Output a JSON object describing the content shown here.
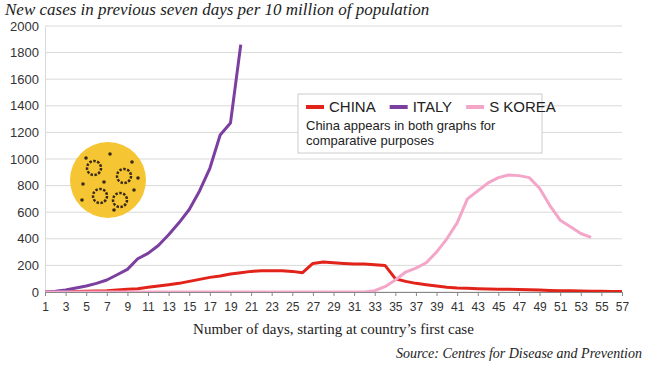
{
  "chart_data": {
    "type": "line",
    "title": "New cases in previous seven days per 10 million of population",
    "x_label": "Number of days, starting at country’s first case",
    "source": "Source: Centres for Disease and Prevention",
    "note": "China appears in both graphs for comparative purposes",
    "x": [
      1,
      2,
      3,
      4,
      5,
      6,
      7,
      8,
      9,
      10,
      11,
      12,
      13,
      14,
      15,
      16,
      17,
      18,
      19,
      20,
      21,
      22,
      23,
      24,
      25,
      26,
      27,
      28,
      29,
      30,
      31,
      32,
      33,
      34,
      35,
      36,
      37,
      38,
      39,
      40,
      41,
      42,
      43,
      44,
      45,
      46,
      47,
      48,
      49,
      50,
      51,
      52,
      53,
      54,
      55,
      56,
      57
    ],
    "series": [
      {
        "name": "CHINA",
        "color": "#e2231a",
        "values": [
          0,
          0,
          2,
          3,
          5,
          8,
          10,
          15,
          20,
          25,
          35,
          45,
          55,
          65,
          80,
          95,
          110,
          120,
          135,
          145,
          155,
          160,
          160,
          160,
          155,
          145,
          215,
          225,
          220,
          215,
          210,
          210,
          205,
          200,
          100,
          80,
          65,
          55,
          45,
          35,
          30,
          28,
          25,
          22,
          20,
          20,
          18,
          16,
          15,
          12,
          10,
          10,
          8,
          6,
          5,
          4,
          3
        ]
      },
      {
        "name": "ITALY",
        "color": "#7b3fa0",
        "values": [
          0,
          5,
          15,
          30,
          45,
          65,
          90,
          130,
          170,
          250,
          290,
          350,
          430,
          520,
          620,
          760,
          930,
          1180,
          1270,
          1860,
          null,
          null,
          null,
          null,
          null,
          null,
          null,
          null,
          null,
          null,
          null,
          null,
          null,
          null,
          null,
          null,
          null,
          null,
          null,
          null,
          null,
          null,
          null,
          null,
          null,
          null,
          null,
          null,
          null,
          null,
          null,
          null,
          null,
          null,
          null,
          null,
          null
        ]
      },
      {
        "name": "S KOREA",
        "color": "#f4a6c9",
        "values": [
          0,
          0,
          0,
          0,
          0,
          0,
          0,
          0,
          0,
          0,
          0,
          0,
          0,
          0,
          0,
          0,
          0,
          0,
          0,
          0,
          0,
          0,
          0,
          0,
          0,
          0,
          0,
          0,
          0,
          0,
          0,
          0,
          10,
          40,
          90,
          150,
          180,
          220,
          300,
          400,
          520,
          700,
          760,
          820,
          860,
          880,
          875,
          860,
          780,
          650,
          540,
          490,
          440,
          410,
          null,
          null,
          null
        ]
      }
    ],
    "xlim": [
      1,
      57
    ],
    "xticks": [
      1,
      3,
      5,
      7,
      9,
      11,
      13,
      15,
      17,
      19,
      21,
      23,
      25,
      27,
      29,
      31,
      33,
      35,
      37,
      39,
      41,
      43,
      45,
      47,
      49,
      51,
      53,
      55,
      57
    ],
    "ylim": [
      0,
      2000
    ],
    "yticks": [
      0,
      200,
      400,
      600,
      800,
      1000,
      1200,
      1400,
      1600,
      1800,
      2000
    ],
    "grid": true,
    "legend": "top-right"
  }
}
